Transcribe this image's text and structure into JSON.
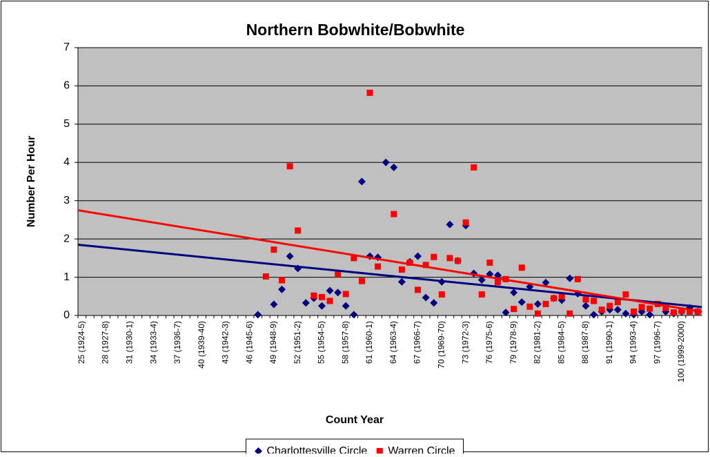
{
  "chart_data": {
    "type": "scatter",
    "title": "Northern Bobwhite/Bobwhite",
    "x_label": "Count Year",
    "y_label": "Number Per Hour",
    "categories": [
      "25 (1924-5)",
      null,
      null,
      "28 (1927-8)",
      null,
      null,
      "31 (1930-1)",
      null,
      null,
      "34 (1933-4)",
      null,
      null,
      "37 (1936-7)",
      null,
      null,
      "40 (1939-40)",
      null,
      null,
      "43 (1942-3)",
      null,
      null,
      "46 (1945-6)",
      null,
      null,
      "49 (1948-9)",
      null,
      null,
      "52 (1951-2)",
      null,
      null,
      "55 (1954-5)",
      null,
      null,
      "58 (1957-8)",
      null,
      null,
      "61 (1960-1)",
      null,
      null,
      "64 (1963-4)",
      null,
      null,
      "67 (1966-7)",
      null,
      null,
      "70 (1969-70)",
      null,
      null,
      "73 (1972-3)",
      null,
      null,
      "76 (1975-6)",
      null,
      null,
      "79 (1978-9)",
      null,
      null,
      "82 (1981-2)",
      null,
      null,
      "85 (1984-5)",
      null,
      null,
      "88 (1987-8)",
      null,
      null,
      "91 (1990-1)",
      null,
      null,
      "94 (1993-4)",
      null,
      null,
      "97 (1996-7)",
      null,
      null,
      "100 (1999-2000)",
      null,
      null
    ],
    "series": [
      {
        "name": "Charlottesville Circle",
        "color": "#000080",
        "marker": "diamond",
        "trendline": [
          1.85,
          0.22
        ],
        "values": [
          null,
          null,
          null,
          null,
          null,
          null,
          null,
          null,
          null,
          null,
          null,
          null,
          null,
          null,
          null,
          null,
          null,
          null,
          null,
          null,
          null,
          null,
          0.02,
          null,
          0.29,
          0.68,
          1.55,
          1.23,
          0.33,
          0.45,
          0.25,
          0.65,
          0.6,
          0.25,
          0.02,
          3.5,
          1.55,
          1.52,
          4.0,
          3.87,
          0.88,
          1.4,
          1.55,
          0.47,
          0.33,
          0.88,
          2.38,
          1.43,
          2.35,
          1.1,
          0.93,
          1.08,
          1.05,
          0.08,
          0.6,
          0.35,
          0.75,
          0.3,
          0.86,
          0.45,
          0.4,
          0.97,
          0.57,
          0.25,
          0.02,
          0.1,
          0.15,
          0.15,
          0.05,
          0.02,
          0.1,
          0.02,
          null,
          0.1,
          0.05,
          0.1,
          0.2,
          0.1
        ]
      },
      {
        "name": "Warren Circle",
        "color": "#ff0000",
        "marker": "square",
        "trendline": [
          2.75,
          0.1
        ],
        "values": [
          null,
          null,
          null,
          null,
          null,
          null,
          null,
          null,
          null,
          null,
          null,
          null,
          null,
          null,
          null,
          null,
          null,
          null,
          null,
          null,
          null,
          null,
          null,
          1.02,
          1.72,
          0.92,
          3.9,
          2.22,
          null,
          0.52,
          0.48,
          0.38,
          1.08,
          0.56,
          1.5,
          0.9,
          5.82,
          1.28,
          null,
          2.65,
          1.2,
          1.38,
          0.67,
          1.32,
          1.53,
          0.55,
          1.5,
          1.43,
          2.43,
          3.87,
          0.55,
          1.38,
          0.87,
          0.95,
          0.17,
          1.25,
          0.23,
          0.05,
          0.3,
          0.45,
          0.5,
          0.05,
          0.95,
          0.42,
          0.38,
          0.15,
          0.25,
          0.35,
          0.55,
          0.1,
          0.22,
          0.18,
          0.3,
          0.2,
          0.08,
          0.12,
          0.1,
          0.1
        ]
      }
    ],
    "ylim": [
      0,
      7
    ],
    "yticks": [
      0,
      1,
      2,
      3,
      4,
      5,
      6,
      7
    ],
    "grid": true,
    "legend": "bottom"
  }
}
